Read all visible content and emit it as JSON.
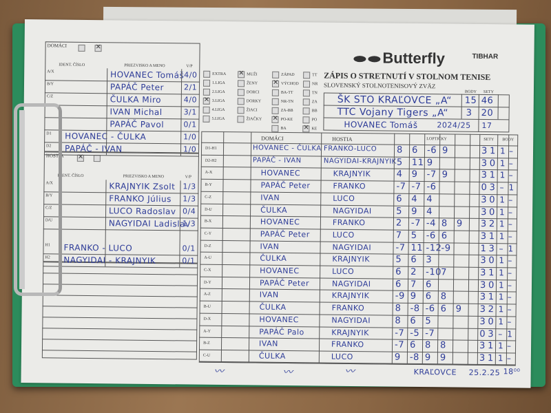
{
  "brand": {
    "logo": "Butterfly",
    "sponsor": "TIBHAR"
  },
  "header": {
    "title": "ZÁPIS O STRETNUTÍ V STOLNOM TENISE",
    "association": "SLOVENSKÝ STOLNOTENISOVÝ ZVÄZ",
    "body_label": "BODY",
    "sety_label": "SETY",
    "home_team": "ŠK STO KRAĽOVCE „A“",
    "home_points": "15",
    "home_sets": "46",
    "guest_team": "TTC Vojany Tigers „A“",
    "guest_points": "3",
    "guest_sets": "20",
    "referee": "HOVANEC Tomáš",
    "season": "2024/25",
    "round": "17"
  },
  "categories": {
    "league": [
      {
        "label": "EXTRA",
        "checked": false
      },
      {
        "label": "1.LIGA",
        "checked": false
      },
      {
        "label": "2.LIGA",
        "checked": false
      },
      {
        "label": "3.LIGA",
        "checked": true
      },
      {
        "label": "4.LIGA",
        "checked": false
      },
      {
        "label": "5.LIGA",
        "checked": false
      }
    ],
    "group": [
      {
        "label": "MUŽI",
        "checked": true
      },
      {
        "label": "ŽENY",
        "checked": false
      },
      {
        "label": "DORCI",
        "checked": false
      },
      {
        "label": "DORKY",
        "checked": false
      },
      {
        "label": "ŽIACI",
        "checked": false
      },
      {
        "label": "ŽIAČKY",
        "checked": false
      }
    ],
    "region": [
      {
        "label": "ZÁPAD",
        "checked": false
      },
      {
        "label": "VÝCHOD",
        "checked": true
      },
      {
        "label": "BA-TT",
        "checked": false
      },
      {
        "label": "NR-TN",
        "checked": false
      },
      {
        "label": "ZA-BB",
        "checked": false
      },
      {
        "label": "PO-KE",
        "checked": true
      },
      {
        "label": "BA",
        "checked": false
      }
    ],
    "district": [
      {
        "label": "TT",
        "checked": false
      },
      {
        "label": "NR",
        "checked": false
      },
      {
        "label": "TN",
        "checked": false
      },
      {
        "label": "ZA",
        "checked": false
      },
      {
        "label": "BB",
        "checked": false
      },
      {
        "label": "PO",
        "checked": false
      },
      {
        "label": "KE",
        "checked": true
      }
    ]
  },
  "home": {
    "label": "DOMÁCI",
    "ident_label": "IDENT. ČÍSLO",
    "name_label": "PRIEZVISKO A MENO",
    "wl_label": "V/P",
    "players": [
      {
        "code": "A/X",
        "name": "HOVANEC Tomáš",
        "wl": "4/0"
      },
      {
        "code": "B/Y",
        "name": "PAPÁČ Peter",
        "wl": "2/1"
      },
      {
        "code": "C/Z",
        "name": "ČULKA Miro",
        "wl": "4/0"
      },
      {
        "code": "",
        "name": "IVAN Michal",
        "wl": "3/1"
      },
      {
        "code": "",
        "name": "PAPÁČ Pavol",
        "wl": "0/1"
      }
    ],
    "doubles": [
      {
        "code": "D1",
        "name": "HOVANEC - ČULKA",
        "wl": "1/0"
      },
      {
        "code": "D2",
        "name": "PAPÁČ - IVAN",
        "wl": "1/0"
      }
    ]
  },
  "guest": {
    "label": "HOSTIA",
    "ident_label": "IDENT. ČÍSLO",
    "name_label": "PRIEZVISKO A MENO",
    "wl_label": "V/P",
    "players": [
      {
        "code": "A/X",
        "name": "KRAJNYIK Zsolt",
        "wl": "1/3"
      },
      {
        "code": "B/Y",
        "name": "FRANKO Július",
        "wl": "1/3"
      },
      {
        "code": "C/Z",
        "name": "LUCO Radoslav",
        "wl": "0/4"
      },
      {
        "code": "D/U",
        "name": "NAGYIDAI Ladislav",
        "wl": "1/3"
      }
    ],
    "doubles": [
      {
        "code": "H1",
        "name": "FRANKO - LUCO",
        "wl": "0/1"
      },
      {
        "code": "H2",
        "name": "NAGYIDAI - KRAJNYIK",
        "wl": "0/1"
      }
    ]
  },
  "table": {
    "home_label": "DOMÁCI",
    "guest_label": "HOSTIA",
    "balls_label": "LOPTIČKY",
    "sets_label": "SETY",
    "points_label": "BODY",
    "matches": [
      {
        "order": "D1-H1",
        "home": "HOVANEC - ČULKA",
        "guest": "FRANKO-LUCO",
        "balls": [
          "8",
          "6",
          "-6",
          "9"
        ],
        "sets": [
          "3",
          "1"
        ],
        "points": [
          "1",
          "–"
        ]
      },
      {
        "order": "D2-H2",
        "home": "PAPÁČ - IVAN",
        "guest": "NAGYIDAI-KRAJNYIK",
        "balls": [
          "5",
          "11",
          "9"
        ],
        "sets": [
          "3",
          "0"
        ],
        "points": [
          "1",
          "–"
        ]
      },
      {
        "order": "A-X",
        "home": "HOVANEC",
        "guest": "KRAJNYIK",
        "balls": [
          "4",
          "9",
          "-7",
          "9"
        ],
        "sets": [
          "3",
          "1"
        ],
        "points": [
          "1",
          "–"
        ]
      },
      {
        "order": "B-Y",
        "home": "PAPÁČ Peter",
        "guest": "FRANKO",
        "balls": [
          "-7",
          "-7",
          "-6"
        ],
        "sets": [
          "0",
          "3"
        ],
        "points": [
          "–",
          "1"
        ]
      },
      {
        "order": "C-Z",
        "home": "IVAN",
        "guest": "LUCO",
        "balls": [
          "6",
          "4",
          "4"
        ],
        "sets": [
          "3",
          "0"
        ],
        "points": [
          "1",
          "–"
        ]
      },
      {
        "order": "D-U",
        "home": "ČULKA",
        "guest": "NAGYIDAI",
        "balls": [
          "5",
          "9",
          "4"
        ],
        "sets": [
          "3",
          "0"
        ],
        "points": [
          "1",
          "–"
        ]
      },
      {
        "order": "B-X",
        "home": "HOVANEC",
        "guest": "FRANKO",
        "balls": [
          "2",
          "-7",
          "-4",
          "8",
          "9"
        ],
        "sets": [
          "3",
          "2"
        ],
        "points": [
          "1",
          "–"
        ]
      },
      {
        "order": "C-Y",
        "home": "PAPÁČ Peter",
        "guest": "LUCO",
        "balls": [
          "7",
          "5",
          "-6",
          "6"
        ],
        "sets": [
          "3",
          "1"
        ],
        "points": [
          "1",
          "–"
        ]
      },
      {
        "order": "D-Z",
        "home": "IVAN",
        "guest": "NAGYIDAI",
        "balls": [
          "-7",
          "11",
          "-12",
          "-9"
        ],
        "sets": [
          "1",
          "3"
        ],
        "points": [
          "–",
          "1"
        ]
      },
      {
        "order": "A-U",
        "home": "ČULKA",
        "guest": "KRAJNYIK",
        "balls": [
          "5",
          "6",
          "3"
        ],
        "sets": [
          "3",
          "0"
        ],
        "points": [
          "1",
          "–"
        ]
      },
      {
        "order": "C-X",
        "home": "HOVANEC",
        "guest": "LUCO",
        "balls": [
          "6",
          "2",
          "-10",
          "7"
        ],
        "sets": [
          "3",
          "1"
        ],
        "points": [
          "1",
          "–"
        ]
      },
      {
        "order": "D-Y",
        "home": "PAPÁČ Peter",
        "guest": "NAGYIDAI",
        "balls": [
          "6",
          "7",
          "6"
        ],
        "sets": [
          "3",
          "0"
        ],
        "points": [
          "1",
          "–"
        ]
      },
      {
        "order": "A-Z",
        "home": "IVAN",
        "guest": "KRAJNYIK",
        "balls": [
          "-9",
          "9",
          "6",
          "8"
        ],
        "sets": [
          "3",
          "1"
        ],
        "points": [
          "1",
          "–"
        ]
      },
      {
        "order": "B-U",
        "home": "ČULKA",
        "guest": "FRANKO",
        "balls": [
          "8",
          "-8",
          "-6",
          "6",
          "9"
        ],
        "sets": [
          "3",
          "2"
        ],
        "points": [
          "1",
          "–"
        ]
      },
      {
        "order": "D-X",
        "home": "HOVANEC",
        "guest": "NAGYIDAI",
        "balls": [
          "8",
          "6",
          "5"
        ],
        "sets": [
          "3",
          "0"
        ],
        "points": [
          "1",
          "–"
        ]
      },
      {
        "order": "A-Y",
        "home": "PAPÁČ Palo",
        "guest": "KRAJNYIK",
        "balls": [
          "-7",
          "-5",
          "-7"
        ],
        "sets": [
          "0",
          "3"
        ],
        "points": [
          "–",
          "1"
        ]
      },
      {
        "order": "B-Z",
        "home": "IVAN",
        "guest": "FRANKO",
        "balls": [
          "-7",
          "6",
          "8",
          "8"
        ],
        "sets": [
          "3",
          "1"
        ],
        "points": [
          "1",
          "–"
        ]
      },
      {
        "order": "C-U",
        "home": "ČULKA",
        "guest": "LUCO",
        "balls": [
          "9",
          "-8",
          "9",
          "9"
        ],
        "sets": [
          "3",
          "1"
        ],
        "points": [
          "1",
          "–"
        ]
      }
    ]
  },
  "footer": {
    "place": "KRAĽOVCE",
    "date": "25.2.25",
    "time": "18⁰⁰"
  }
}
